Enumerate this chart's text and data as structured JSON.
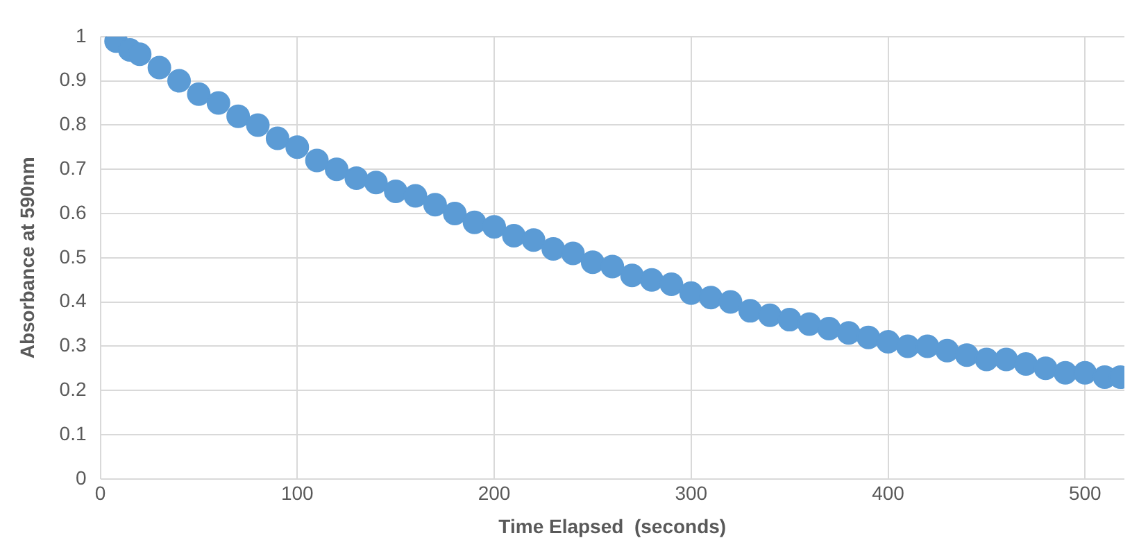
{
  "chart_data": {
    "type": "scatter",
    "xlabel": "Time Elapsed  (seconds)",
    "ylabel": "Absorbance at 590nm",
    "x": [
      8,
      15,
      20,
      30,
      40,
      50,
      60,
      70,
      80,
      90,
      100,
      110,
      120,
      130,
      140,
      150,
      160,
      170,
      180,
      190,
      200,
      210,
      220,
      230,
      240,
      250,
      260,
      270,
      280,
      290,
      300,
      310,
      320,
      330,
      340,
      350,
      360,
      370,
      380,
      390,
      400,
      410,
      420,
      430,
      440,
      450,
      460,
      470,
      480,
      490,
      500,
      510,
      518
    ],
    "series": [
      {
        "color": "#5b9bd5",
        "values": [
          0.99,
          0.97,
          0.96,
          0.93,
          0.9,
          0.87,
          0.85,
          0.82,
          0.8,
          0.77,
          0.75,
          0.72,
          0.7,
          0.68,
          0.67,
          0.65,
          0.64,
          0.62,
          0.6,
          0.58,
          0.57,
          0.55,
          0.54,
          0.52,
          0.51,
          0.49,
          0.48,
          0.46,
          0.45,
          0.44,
          0.42,
          0.41,
          0.4,
          0.38,
          0.37,
          0.36,
          0.35,
          0.34,
          0.33,
          0.32,
          0.31,
          0.3,
          0.3,
          0.29,
          0.28,
          0.27,
          0.27,
          0.26,
          0.25,
          0.24,
          0.24,
          0.23,
          0.23
        ]
      }
    ],
    "xlim": [
      0,
      520
    ],
    "xticks": [
      0,
      100,
      200,
      300,
      400,
      500
    ],
    "ylim": [
      0,
      1
    ],
    "yticks": [
      0,
      0.1,
      0.2,
      0.3,
      0.4,
      0.5,
      0.6,
      0.7,
      0.8,
      0.9,
      1
    ],
    "grid": true,
    "marker": "circle",
    "legend": false
  }
}
